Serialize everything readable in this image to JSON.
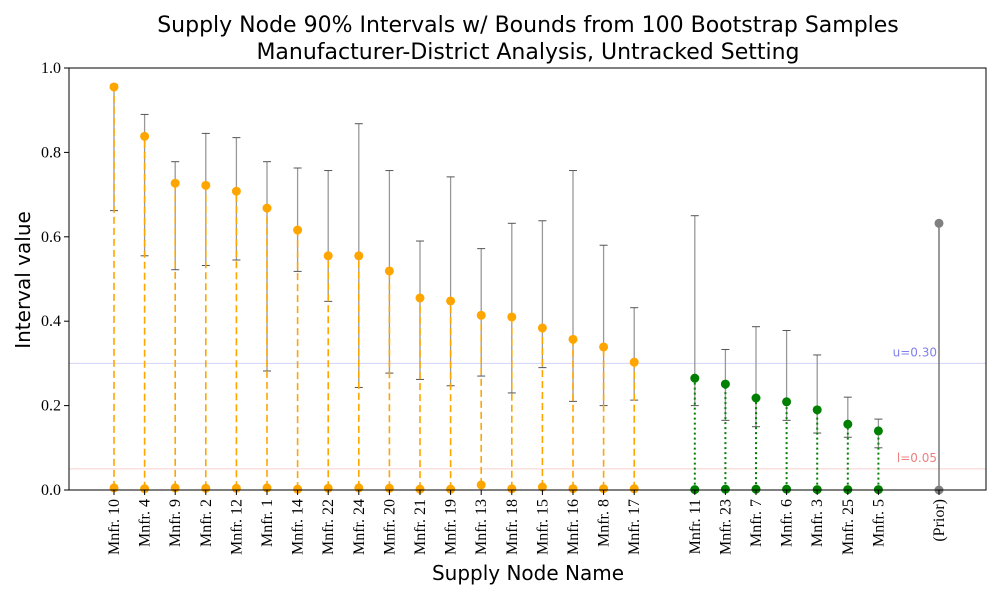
{
  "chart_data": {
    "type": "interval",
    "title": "Supply Node 90% Intervals w/ Bounds from 100 Bootstrap Samples",
    "subtitle": "Manufacturer-District Analysis, Untracked Setting",
    "xlabel": "Supply Node Name",
    "ylabel": "Interval value",
    "ylim": [
      0.0,
      1.0
    ],
    "yticks": [
      "0.0",
      "0.2",
      "0.4",
      "0.6",
      "0.8",
      "1.0"
    ],
    "grid": false,
    "colors": {
      "group_high": "#FFA500",
      "group_low": "#008000",
      "prior": "#808080",
      "bootstrap_range": "#999999",
      "upper_ref": "#8080EE",
      "lower_ref": "#F08080"
    },
    "reference_lines": [
      {
        "label": "u=0.30",
        "y": 0.3,
        "color": "#8080EE"
      },
      {
        "label": "l=0.05",
        "y": 0.05,
        "color": "#F08080"
      }
    ],
    "groups": [
      {
        "color": "#FFA500",
        "line_style": "dashed",
        "nodes": [
          {
            "name": "Mnfr. 10",
            "lower": 0.005,
            "upper": 0.955,
            "bs_low": 0.662,
            "bs_high": 0.96
          },
          {
            "name": "Mnfr. 4",
            "lower": 0.003,
            "upper": 0.838,
            "bs_low": 0.555,
            "bs_high": 0.89
          },
          {
            "name": "Mnfr. 9",
            "lower": 0.005,
            "upper": 0.727,
            "bs_low": 0.522,
            "bs_high": 0.778
          },
          {
            "name": "Mnfr. 2",
            "lower": 0.004,
            "upper": 0.722,
            "bs_low": 0.532,
            "bs_high": 0.845
          },
          {
            "name": "Mnfr. 12",
            "lower": 0.004,
            "upper": 0.708,
            "bs_low": 0.545,
            "bs_high": 0.835
          },
          {
            "name": "Mnfr. 1",
            "lower": 0.005,
            "upper": 0.668,
            "bs_low": 0.282,
            "bs_high": 0.778
          },
          {
            "name": "Mnfr. 14",
            "lower": 0.002,
            "upper": 0.616,
            "bs_low": 0.518,
            "bs_high": 0.763
          },
          {
            "name": "Mnfr. 22",
            "lower": 0.004,
            "upper": 0.555,
            "bs_low": 0.447,
            "bs_high": 0.757
          },
          {
            "name": "Mnfr. 24",
            "lower": 0.005,
            "upper": 0.555,
            "bs_low": 0.243,
            "bs_high": 0.868
          },
          {
            "name": "Mnfr. 20",
            "lower": 0.004,
            "upper": 0.519,
            "bs_low": 0.277,
            "bs_high": 0.757
          },
          {
            "name": "Mnfr. 21",
            "lower": 0.002,
            "upper": 0.455,
            "bs_low": 0.262,
            "bs_high": 0.59
          },
          {
            "name": "Mnfr. 19",
            "lower": 0.002,
            "upper": 0.448,
            "bs_low": 0.247,
            "bs_high": 0.742
          },
          {
            "name": "Mnfr. 13",
            "lower": 0.012,
            "upper": 0.414,
            "bs_low": 0.27,
            "bs_high": 0.572
          },
          {
            "name": "Mnfr. 18",
            "lower": 0.003,
            "upper": 0.41,
            "bs_low": 0.23,
            "bs_high": 0.632
          },
          {
            "name": "Mnfr. 15",
            "lower": 0.007,
            "upper": 0.384,
            "bs_low": 0.29,
            "bs_high": 0.638
          },
          {
            "name": "Mnfr. 16",
            "lower": 0.003,
            "upper": 0.357,
            "bs_low": 0.21,
            "bs_high": 0.757
          },
          {
            "name": "Mnfr. 8",
            "lower": 0.003,
            "upper": 0.339,
            "bs_low": 0.2,
            "bs_high": 0.58
          },
          {
            "name": "Mnfr. 17",
            "lower": 0.003,
            "upper": 0.303,
            "bs_low": 0.213,
            "bs_high": 0.432
          }
        ]
      },
      {
        "color": "#008000",
        "line_style": "dotted",
        "nodes": [
          {
            "name": "Mnfr. 11",
            "lower": 0.001,
            "upper": 0.265,
            "bs_low": 0.2,
            "bs_high": 0.65
          },
          {
            "name": "Mnfr. 23",
            "lower": 0.002,
            "upper": 0.251,
            "bs_low": 0.165,
            "bs_high": 0.333
          },
          {
            "name": "Mnfr. 7",
            "lower": 0.002,
            "upper": 0.218,
            "bs_low": 0.15,
            "bs_high": 0.387
          },
          {
            "name": "Mnfr. 6",
            "lower": 0.002,
            "upper": 0.209,
            "bs_low": 0.165,
            "bs_high": 0.378
          },
          {
            "name": "Mnfr. 3",
            "lower": 0.001,
            "upper": 0.19,
            "bs_low": 0.135,
            "bs_high": 0.32
          },
          {
            "name": "Mnfr. 25",
            "lower": 0.001,
            "upper": 0.156,
            "bs_low": 0.125,
            "bs_high": 0.22
          },
          {
            "name": "Mnfr. 5",
            "lower": 0.001,
            "upper": 0.14,
            "bs_low": 0.1,
            "bs_high": 0.168
          }
        ]
      },
      {
        "color": "#808080",
        "line_style": "solid",
        "nodes": [
          {
            "name": "(Prior)",
            "lower": 0.0,
            "upper": 0.632
          }
        ]
      }
    ]
  }
}
